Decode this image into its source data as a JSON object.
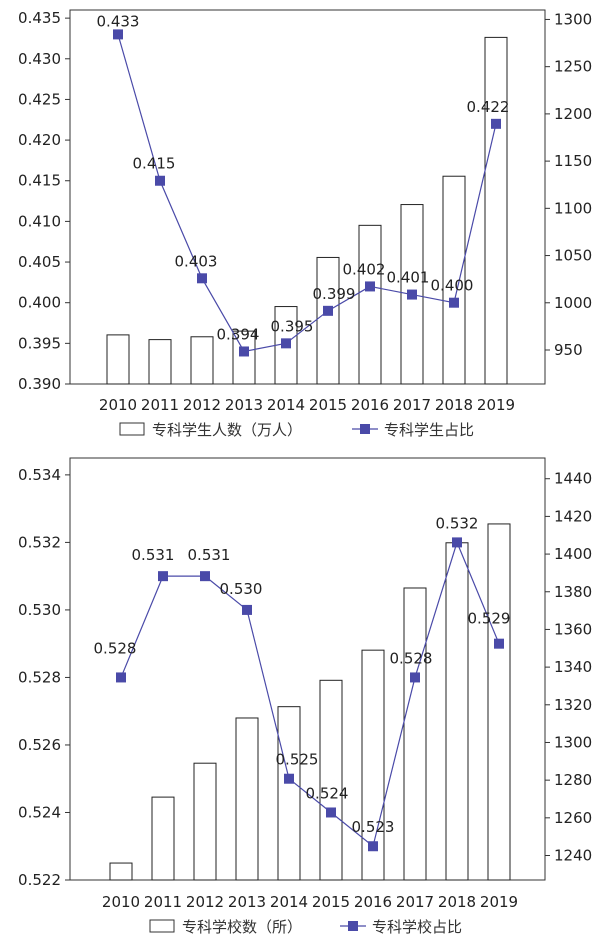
{
  "chart_data": [
    {
      "type": "bar+line",
      "categories": [
        "2010",
        "2011",
        "2012",
        "2013",
        "2014",
        "2015",
        "2016",
        "2017",
        "2018",
        "2019"
      ],
      "bar_series": {
        "name": "专科学生人数（万人）",
        "axis": "right",
        "values": [
          966,
          961,
          964,
          970,
          996,
          1048,
          1082,
          1104,
          1134,
          1281
        ]
      },
      "line_series": {
        "name": "专科学生占比",
        "axis": "left",
        "values": [
          0.433,
          0.415,
          0.403,
          0.394,
          0.395,
          0.399,
          0.402,
          0.401,
          0.4,
          0.422
        ],
        "labels": [
          "0.433",
          "0.415",
          "0.403",
          "0.394",
          "0.395",
          "0.399",
          "0.402",
          "0.401",
          "0.400",
          "0.422"
        ]
      },
      "left_axis": {
        "min": 0.39,
        "max": 0.436,
        "ticks": [
          "0.390",
          "0.395",
          "0.400",
          "0.405",
          "0.410",
          "0.415",
          "0.420",
          "0.425",
          "0.430",
          "0.435"
        ]
      },
      "right_axis": {
        "min": 914,
        "max": 1310,
        "ticks": [
          "950",
          "1000",
          "1050",
          "1100",
          "1150",
          "1200",
          "1250",
          "1300"
        ]
      },
      "legend_position": "bottom",
      "colors": {
        "line": "#4a4aa8",
        "marker": "#4a4aa8",
        "bar_stroke": "#222222",
        "bar_fill": "#ffffff"
      }
    },
    {
      "type": "bar+line",
      "categories": [
        "2010",
        "2011",
        "2012",
        "2013",
        "2014",
        "2015",
        "2016",
        "2017",
        "2018",
        "2019"
      ],
      "bar_series": {
        "name": "专科学校数（所）",
        "axis": "right",
        "values": [
          1236,
          1271,
          1289,
          1313,
          1319,
          1333,
          1349,
          1382,
          1406,
          1416
        ]
      },
      "line_series": {
        "name": "专科学校占比",
        "axis": "left",
        "values": [
          0.528,
          0.531,
          0.531,
          0.53,
          0.525,
          0.524,
          0.523,
          0.528,
          0.532,
          0.529
        ],
        "labels": [
          "0.528",
          "0.531",
          "0.531",
          "0.530",
          "0.525",
          "0.524",
          "0.523",
          "0.528",
          "0.532",
          "0.529"
        ]
      },
      "left_axis": {
        "min": 0.522,
        "max": 0.5345,
        "ticks": [
          "0.522",
          "0.524",
          "0.526",
          "0.528",
          "0.530",
          "0.532",
          "0.534"
        ]
      },
      "right_axis": {
        "min": 1227,
        "max": 1451,
        "ticks": [
          "1240",
          "1260",
          "1280",
          "1300",
          "1320",
          "1340",
          "1360",
          "1380",
          "1400",
          "1420",
          "1440"
        ]
      },
      "legend_position": "bottom",
      "colors": {
        "line": "#4a4aa8",
        "marker": "#4a4aa8",
        "bar_stroke": "#222222",
        "bar_fill": "#ffffff"
      }
    }
  ]
}
